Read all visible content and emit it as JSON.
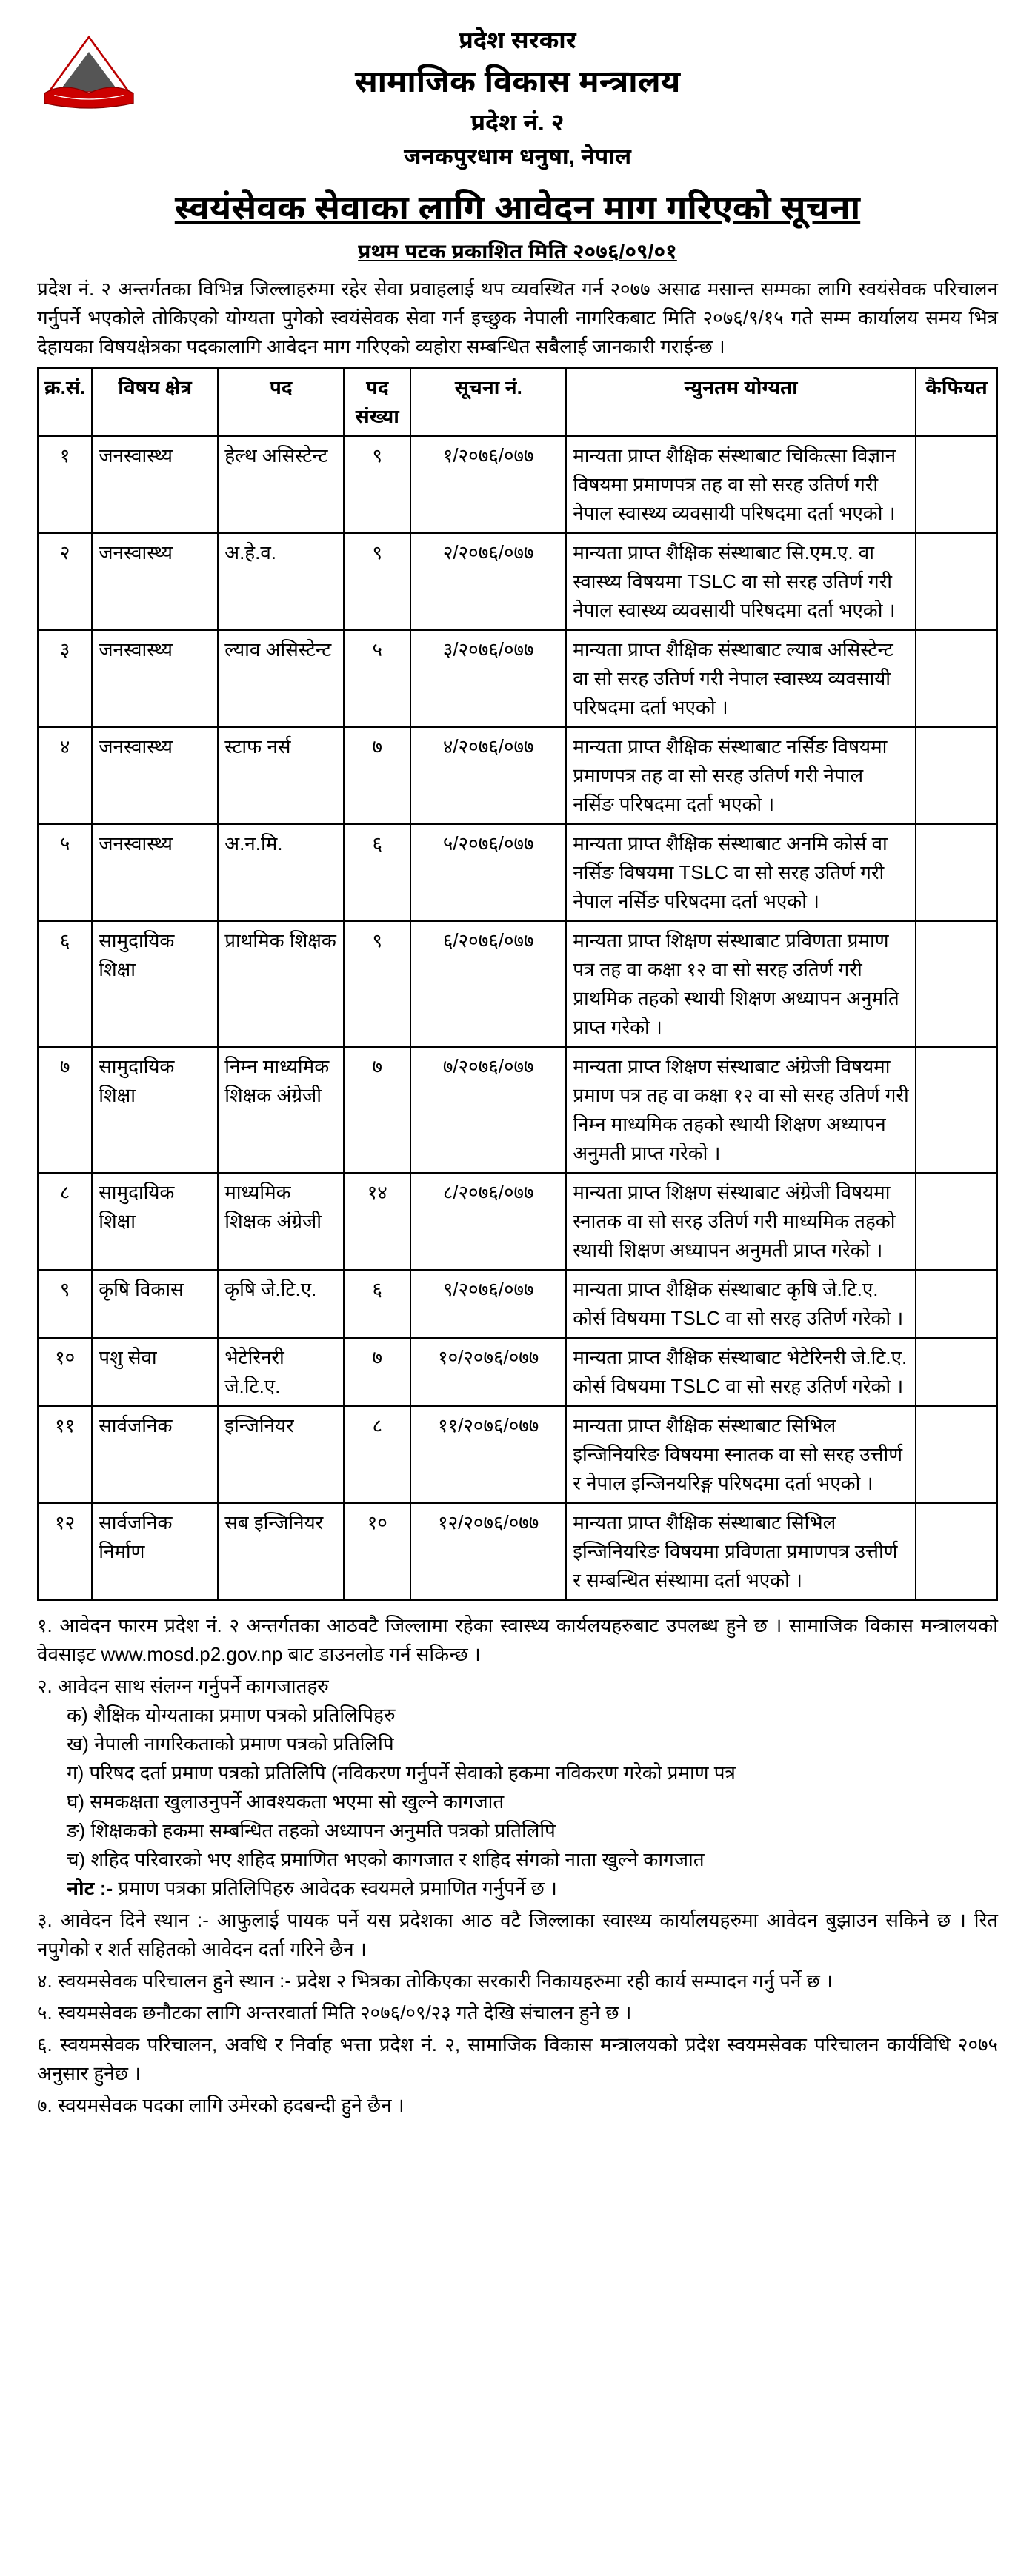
{
  "header": {
    "gov": "प्रदेश सरकार",
    "ministry": "सामाजिक विकास मन्त्रालय",
    "province": "प्रदेश नं. २",
    "address": "जनकपुरधाम धनुषा, नेपाल"
  },
  "notice": {
    "title": "स्वयंसेवक सेवाका लागि आवेदन माग गरिएको सूचना",
    "pub_date": "प्रथम पटक प्रकाशित मिति २०७६/०९/०१",
    "intro": "प्रदेश नं. २ अन्तर्गतका विभिन्न जिल्लाहरुमा रहेर सेवा प्रवाहलाई थप व्यवस्थित गर्न २०७७ असाढ मसान्त सम्मका लागि स्वयंसेवक परिचालन गर्नुपर्ने भएकोले तोकिएको योग्यता पुगेको स्वयंसेवक सेवा गर्न इच्छुक नेपाली नागरिकबाट मिति २०७६/९/१५ गते सम्म कार्यालय समय भित्र देहायका विषयक्षेत्रका पदकालागि आवेदन माग गरिएको व्यहोरा सम्बन्धित सबैलाई जानकारी गराईन्छ ।"
  },
  "table": {
    "head": {
      "sn": "क्र.सं.",
      "field": "विषय क्षेत्र",
      "post": "पद",
      "count": "पद संख्या",
      "notice_no": "सूचना नं.",
      "qual": "न्युनतम योग्यता",
      "remark": "कैफियत"
    },
    "rows": [
      {
        "sn": "१",
        "field": "जनस्वास्थ्य",
        "post": "हेल्थ असिस्टेन्ट",
        "count": "९",
        "notice_no": "१/२०७६/०७७",
        "qual": "मान्यता प्राप्त शैक्षिक संस्थाबाट चिकित्सा विज्ञान विषयमा प्रमाणपत्र तह वा सो सरह उतिर्ण गरी नेपाल स्वास्थ्य व्यवसायी परिषदमा दर्ता भएको ।",
        "remark": ""
      },
      {
        "sn": "२",
        "field": "जनस्वास्थ्य",
        "post": "अ.हे.व.",
        "count": "९",
        "notice_no": "२/२०७६/०७७",
        "qual": "मान्यता प्राप्त शैक्षिक संस्थाबाट सि.एम.ए. वा स्वास्थ्य  विषयमा TSLC वा सो सरह उतिर्ण गरी नेपाल स्वास्थ्य व्यवसायी परिषदमा दर्ता भएको ।",
        "remark": ""
      },
      {
        "sn": "३",
        "field": "जनस्वास्थ्य",
        "post": "ल्याव असिस्टेन्ट",
        "count": "५",
        "notice_no": "३/२०७६/०७७",
        "qual": "मान्यता प्राप्त शैक्षिक संस्थाबाट ल्याब असिस्टेन्ट वा सो सरह उतिर्ण गरी नेपाल स्वास्थ्य व्यवसायी परिषदमा दर्ता भएको ।",
        "remark": ""
      },
      {
        "sn": "४",
        "field": "जनस्वास्थ्य",
        "post": "स्टाफ नर्स",
        "count": "७",
        "notice_no": "४/२०७६/०७७",
        "qual": "मान्यता प्राप्त शैक्षिक संस्थाबाट नर्सिङ विषयमा प्रमाणपत्र तह वा सो सरह उतिर्ण गरी नेपाल नर्सिङ परिषदमा दर्ता भएको ।",
        "remark": ""
      },
      {
        "sn": "५",
        "field": "जनस्वास्थ्य",
        "post": "अ.न.मि.",
        "count": "६",
        "notice_no": "५/२०७६/०७७",
        "qual": "मान्यता प्राप्त शैक्षिक संस्थाबाट अनमि कोर्स वा नर्सिङ विषयमा TSLC वा सो सरह उतिर्ण गरी नेपाल नर्सिङ परिषदमा दर्ता भएको ।",
        "remark": ""
      },
      {
        "sn": "६",
        "field": "सामुदायिक शिक्षा",
        "post": "प्राथमिक शिक्षक",
        "count": "९",
        "notice_no": "६/२०७६/०७७",
        "qual": "मान्यता प्राप्त शिक्षण संस्थाबाट प्रविणता प्रमाण पत्र तह वा कक्षा १२ वा सो सरह उतिर्ण गरी प्राथमिक तहको स्थायी शिक्षण अध्यापन अनुमति प्राप्त गरेको ।",
        "remark": ""
      },
      {
        "sn": "७",
        "field": "सामुदायिक शिक्षा",
        "post": "निम्न माध्यमिक शिक्षक अंग्रेजी",
        "count": "७",
        "notice_no": "७/२०७६/०७७",
        "qual": "मान्यता प्राप्त शिक्षण संस्थाबाट अंग्रेजी विषयमा प्रमाण पत्र  तह वा कक्षा १२ वा सो सरह उतिर्ण गरी निम्न माध्यमिक तहको स्थायी शिक्षण अध्यापन अनुमती प्राप्त गरेको ।",
        "remark": ""
      },
      {
        "sn": "८",
        "field": "सामुदायिक शिक्षा",
        "post": "माध्यमिक शिक्षक अंग्रेजी",
        "count": "१४",
        "notice_no": "८/२०७६/०७७",
        "qual": "मान्यता प्राप्त शिक्षण संस्थाबाट अंग्रेजी विषयमा स्नातक वा सो सरह उतिर्ण गरी माध्यमिक तहको स्थायी शिक्षण अध्यापन अनुमती प्राप्त गरेको ।",
        "remark": ""
      },
      {
        "sn": "९",
        "field": "कृषि विकास",
        "post": "कृषि जे.टि.ए.",
        "count": "६",
        "notice_no": "९/२०७६/०७७",
        "qual": "मान्यता प्राप्त शैक्षिक संस्थाबाट कृषि जे.टि.ए. कोर्स विषयमा TSLC वा सो सरह उतिर्ण गरेको ।",
        "remark": ""
      },
      {
        "sn": "१०",
        "field": "पशु सेवा",
        "post": "भेटेरिनरी जे.टि.ए.",
        "count": "७",
        "notice_no": "१०/२०७६/०७७",
        "qual": "मान्यता प्राप्त शैक्षिक संस्थाबाट भेटेरिनरी जे.टि.ए. कोर्स विषयमा TSLC वा सो सरह उतिर्ण गरेको ।",
        "remark": ""
      },
      {
        "sn": "११",
        "field": "सार्वजनिक",
        "post": "इन्जिनियर",
        "count": "८",
        "notice_no": "११/२०७६/०७७",
        "qual": "मान्यता प्राप्त शैक्षिक संस्थाबाट सिभिल इन्जिनियरिङ विषयमा स्नातक वा सो सरह उत्तीर्ण र नेपाल इन्जिनयरिङ्ग परिषदमा दर्ता भएको ।",
        "remark": ""
      },
      {
        "sn": "१२",
        "field": "सार्वजनिक निर्माण",
        "post": "सब इन्जिनियर",
        "count": "१०",
        "notice_no": "१२/२०७६/०७७",
        "qual": "मान्यता प्राप्त शैक्षिक संस्थाबाट सिभिल इन्जिनियरिङ विषयमा प्रविणता प्रमाणपत्र उत्तीर्ण र सम्बन्धित संस्थामा दर्ता भएको ।",
        "remark": ""
      }
    ]
  },
  "notes": {
    "items": [
      {
        "num": "१.",
        "text": "आवेदन फारम प्रदेश नं. २ अन्तर्गतका आठवटै जिल्लामा रहेका स्वास्थ्य कार्यलयहरुबाट उपलब्ध हुने छ । सामाजिक विकास मन्त्रालयको वेवसाइट www.mosd.p2.gov.np बाट डाउनलोड गर्न सकिन्छ ।"
      },
      {
        "num": "२.",
        "text": "आवेदन साथ संलग्न गर्नुपर्ने कागजातहरु",
        "sub": [
          {
            "k": "क)",
            "t": "शैक्षिक योग्यताका प्रमाण पत्रको प्रतिलिपिहरु"
          },
          {
            "k": "ख)",
            "t": "नेपाली नागरिकताको प्रमाण पत्रको प्रतिलिपि"
          },
          {
            "k": "ग)",
            "t": "परिषद दर्ता प्रमाण पत्रको प्रतिलिपि (नविकरण गर्नुपर्ने सेवाको हकमा नविकरण गरेको प्रमाण पत्र"
          },
          {
            "k": "घ)",
            "t": "समकक्षता खुलाउनुपर्ने आवश्यकता भएमा सो खुल्ने कागजात"
          },
          {
            "k": "ङ)",
            "t": "शिक्षकको हकमा सम्बन्धित तहको अध्यापन अनुमति पत्रको प्रतिलिपि"
          },
          {
            "k": "च)",
            "t": "शहिद परिवारको भए शहिद प्रमाणित भएको कागजात र शहिद संगको नाता खुल्ने कागजात"
          }
        ],
        "note": "नोट :- प्रमाण पत्रका प्रतिलिपिहरु आवेदक स्वयमले प्रमाणित गर्नुपर्ने छ ।"
      },
      {
        "num": "३.",
        "text": "आवेदन दिने स्थान :- आफुलाई पायक पर्ने यस प्रदेशका आठ वटै जिल्लाका स्वास्थ्य कार्यालयहरुमा आवेदन बुझाउन सकिने छ । रित नपुगेको र शर्त सहितको आवेदन दर्ता गरिने छैन ।"
      },
      {
        "num": "४.",
        "text": "स्वयमसेवक परिचालन हुने स्थान :- प्रदेश २ भित्रका तोकिएका सरकारी निकायहरुमा रही कार्य सम्पादन गर्नु पर्ने छ ।"
      },
      {
        "num": "५.",
        "text": "स्वयमसेवक छनौटका लागि अन्तरवार्ता मिति २०७६/०९/२३ गते देखि संचालन हुने छ ।"
      },
      {
        "num": "६.",
        "text": "स्वयमसेवक परिचालन, अवधि र निर्वाह भत्ता प्रदेश नं. २, सामाजिक विकास मन्त्रालयको प्रदेश स्वयमसेवक परिचालन कार्यविधि २०७५ अनुसार हुनेछ ।"
      },
      {
        "num": "७.",
        "text": "स्वयमसेवक पदका लागि उमेरको हदबन्दी हुने छैन ।"
      }
    ]
  },
  "style": {
    "border_color": "#000000",
    "background": "#ffffff",
    "font_size_body": 26,
    "font_size_title": 46
  }
}
